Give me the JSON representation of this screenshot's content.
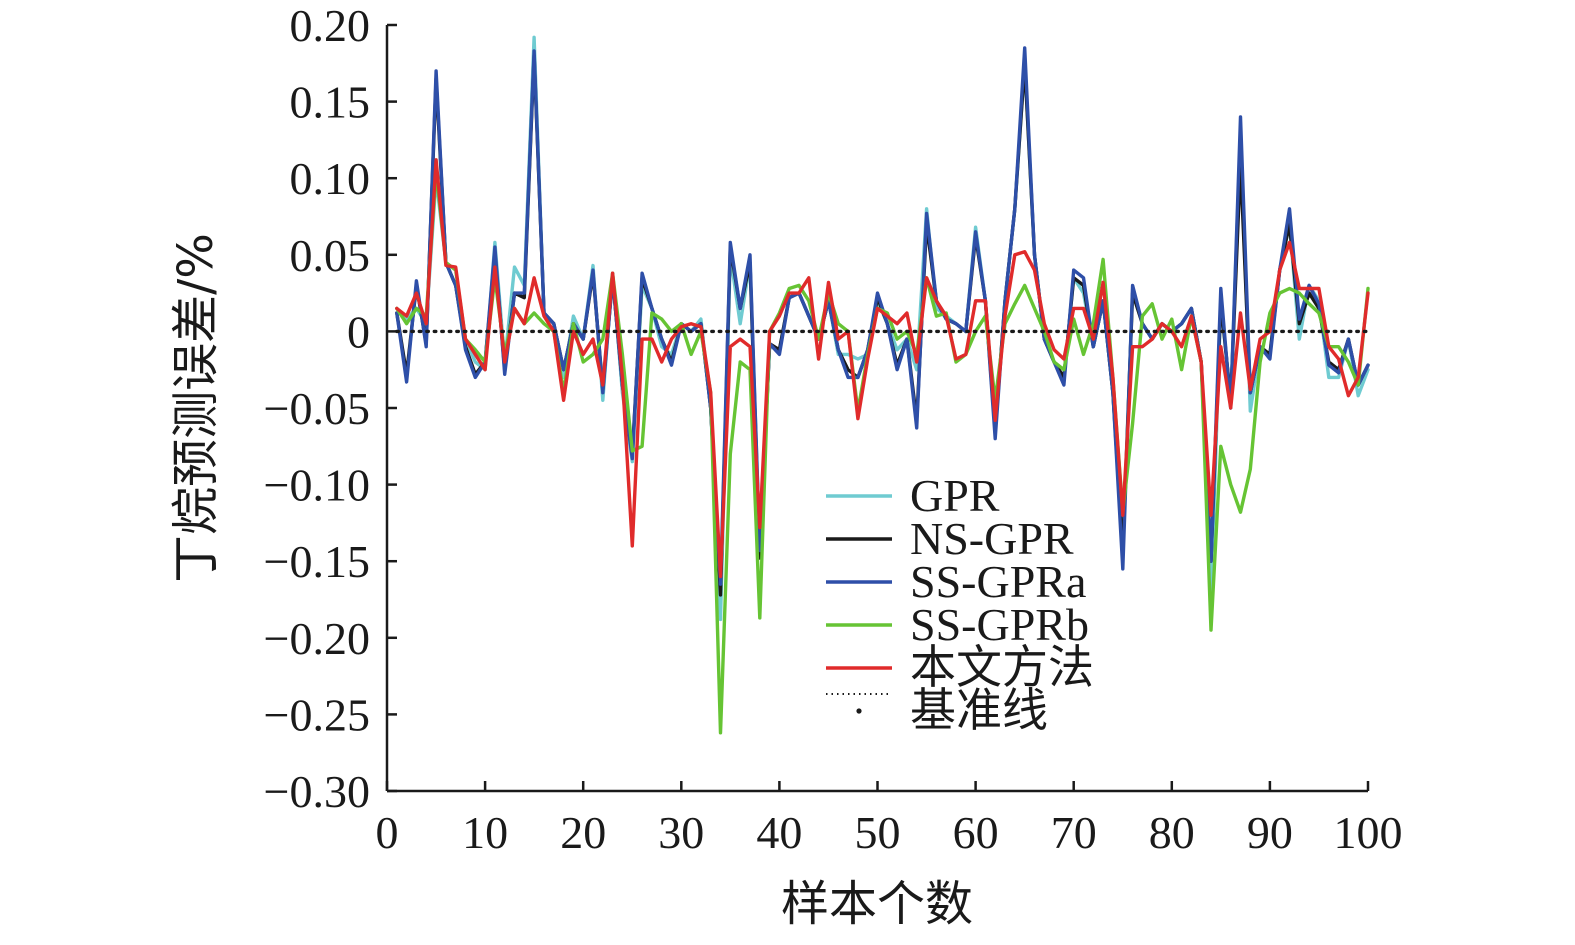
{
  "chart_data": {
    "type": "line",
    "xlabel": "样本个数",
    "ylabel": "丁烷预测误差/%",
    "xlim": [
      0,
      100
    ],
    "ylim": [
      -0.3,
      0.2
    ],
    "x_ticks": [
      0,
      10,
      20,
      30,
      40,
      50,
      60,
      70,
      80,
      90,
      100
    ],
    "x_tick_labels": [
      "0",
      "10",
      "20",
      "30",
      "40",
      "50",
      "60",
      "70",
      "80",
      "90",
      "100"
    ],
    "y_ticks": [
      0.2,
      0.15,
      0.1,
      0.05,
      0,
      -0.05,
      -0.1,
      -0.15,
      -0.2,
      -0.25,
      -0.3
    ],
    "y_tick_labels": [
      "0.20",
      "0.15",
      "0.10",
      "0.05",
      "0",
      "−0.05",
      "−0.10",
      "−0.15",
      "−0.20",
      "−0.25",
      "−0.30"
    ],
    "grid": false,
    "legend_position": "center-right",
    "legend": [
      {
        "label": "GPR",
        "color": "#6fcbd1",
        "style": "solid"
      },
      {
        "label": "NS-GPR",
        "color": "#1a1a1a",
        "style": "solid"
      },
      {
        "label": "SS-GPRa",
        "color": "#2e4fa8",
        "style": "solid"
      },
      {
        "label": "SS-GPRb",
        "color": "#66c434",
        "style": "solid"
      },
      {
        "label": "本文方法",
        "color": "#e02b2b",
        "style": "solid"
      },
      {
        "label": "基准线",
        "color": "#1a1a1a",
        "style": "dotted"
      }
    ],
    "x": [
      1,
      2,
      3,
      4,
      5,
      6,
      7,
      8,
      9,
      10,
      11,
      12,
      13,
      14,
      15,
      16,
      17,
      18,
      19,
      20,
      21,
      22,
      23,
      24,
      25,
      26,
      27,
      28,
      29,
      30,
      31,
      32,
      33,
      34,
      35,
      36,
      37,
      38,
      39,
      40,
      41,
      42,
      43,
      44,
      45,
      46,
      47,
      48,
      49,
      50,
      51,
      52,
      53,
      54,
      55,
      56,
      57,
      58,
      59,
      60,
      61,
      62,
      63,
      64,
      65,
      66,
      67,
      68,
      69,
      70,
      71,
      72,
      73,
      74,
      75,
      76,
      77,
      78,
      79,
      80,
      81,
      82,
      83,
      84,
      85,
      86,
      87,
      88,
      89,
      90,
      91,
      92,
      93,
      94,
      95,
      96,
      97,
      98,
      99,
      100
    ],
    "series": [
      {
        "name": "GPR",
        "color": "#6fcbd1",
        "values": [
          0.015,
          0.008,
          0.015,
          0.005,
          0.1,
          0.045,
          0.03,
          -0.005,
          -0.02,
          -0.025,
          0.058,
          -0.02,
          0.042,
          0.03,
          0.192,
          0.012,
          0.005,
          -0.03,
          0.01,
          -0.005,
          0.043,
          -0.045,
          0.038,
          -0.04,
          -0.085,
          0.03,
          0.015,
          -0.01,
          -0.015,
          0.005,
          0.0,
          0.008,
          -0.05,
          -0.188,
          0.05,
          0.005,
          0.045,
          -0.14,
          -0.01,
          -0.012,
          0.022,
          0.025,
          0.01,
          -0.005,
          0.02,
          -0.015,
          -0.015,
          -0.018,
          -0.015,
          0.02,
          0.005,
          -0.012,
          -0.005,
          -0.025,
          0.08,
          0.015,
          0.01,
          0.005,
          0.0,
          0.068,
          0.02,
          -0.065,
          0.02,
          0.08,
          0.175,
          0.05,
          -0.005,
          -0.02,
          -0.03,
          0.035,
          0.025,
          -0.01,
          0.02,
          -0.04,
          -0.14,
          0.025,
          0.005,
          -0.005,
          0.005,
          0.0,
          0.005,
          0.015,
          -0.02,
          -0.175,
          0.02,
          -0.045,
          0.13,
          -0.052,
          -0.01,
          -0.015,
          0.04,
          0.07,
          -0.005,
          0.03,
          0.02,
          -0.03,
          -0.03,
          -0.005,
          -0.042,
          -0.025
        ]
      },
      {
        "name": "NS-GPR",
        "color": "#1a1a1a",
        "values": [
          0.012,
          -0.028,
          0.03,
          -0.008,
          0.165,
          0.045,
          0.03,
          -0.01,
          -0.028,
          -0.02,
          0.05,
          -0.025,
          0.025,
          0.022,
          0.18,
          0.012,
          0.005,
          -0.025,
          0.005,
          -0.005,
          0.038,
          -0.038,
          0.035,
          -0.035,
          -0.08,
          0.035,
          0.015,
          -0.005,
          -0.02,
          0.005,
          0.0,
          0.005,
          -0.05,
          -0.172,
          0.055,
          0.015,
          0.045,
          -0.148,
          -0.008,
          -0.012,
          0.022,
          0.025,
          0.01,
          -0.005,
          0.02,
          -0.012,
          -0.025,
          -0.03,
          -0.012,
          0.022,
          0.005,
          -0.022,
          -0.005,
          -0.058,
          0.07,
          0.02,
          0.008,
          0.005,
          0.0,
          0.062,
          0.02,
          -0.065,
          0.02,
          0.08,
          0.175,
          0.05,
          -0.005,
          -0.02,
          -0.03,
          0.035,
          0.03,
          -0.01,
          0.02,
          -0.04,
          -0.145,
          0.025,
          0.005,
          -0.005,
          0.005,
          0.0,
          0.005,
          0.015,
          -0.02,
          -0.15,
          0.02,
          -0.045,
          0.11,
          -0.04,
          -0.01,
          -0.015,
          0.04,
          0.07,
          0.005,
          0.025,
          0.015,
          -0.02,
          -0.025,
          -0.005,
          -0.035,
          -0.022
        ]
      },
      {
        "name": "SS-GPRa",
        "color": "#2e4fa8",
        "values": [
          0.012,
          -0.033,
          0.033,
          -0.01,
          0.17,
          0.045,
          0.03,
          -0.012,
          -0.03,
          -0.02,
          0.055,
          -0.028,
          0.025,
          0.025,
          0.183,
          0.012,
          0.005,
          -0.025,
          0.005,
          -0.005,
          0.04,
          -0.04,
          0.035,
          -0.035,
          -0.083,
          0.038,
          0.015,
          -0.005,
          -0.022,
          0.005,
          0.0,
          0.005,
          -0.05,
          -0.165,
          0.058,
          0.015,
          0.05,
          -0.143,
          -0.008,
          -0.015,
          0.022,
          0.025,
          0.01,
          -0.005,
          0.02,
          -0.012,
          -0.03,
          -0.03,
          -0.012,
          0.025,
          0.005,
          -0.025,
          -0.005,
          -0.063,
          0.077,
          0.02,
          0.008,
          0.005,
          0.0,
          0.065,
          0.02,
          -0.07,
          0.02,
          0.08,
          0.185,
          0.05,
          -0.005,
          -0.02,
          -0.035,
          0.04,
          0.035,
          -0.01,
          0.02,
          -0.04,
          -0.155,
          0.03,
          0.005,
          -0.005,
          0.005,
          0.0,
          0.005,
          0.015,
          -0.02,
          -0.15,
          0.028,
          -0.05,
          0.14,
          -0.04,
          -0.01,
          -0.018,
          0.04,
          0.08,
          0.008,
          0.03,
          0.018,
          -0.022,
          -0.027,
          -0.005,
          -0.035,
          -0.022
        ]
      },
      {
        "name": "SS-GPRb",
        "color": "#66c434",
        "values": [
          0.015,
          0.005,
          0.015,
          0.01,
          0.105,
          0.045,
          0.04,
          -0.005,
          -0.012,
          -0.02,
          0.035,
          -0.015,
          0.015,
          0.005,
          0.012,
          0.005,
          0.0,
          -0.04,
          0.005,
          -0.02,
          -0.015,
          -0.005,
          0.038,
          -0.015,
          -0.078,
          -0.075,
          0.012,
          0.008,
          0.0,
          0.005,
          -0.015,
          0.0,
          -0.04,
          -0.262,
          -0.08,
          -0.02,
          -0.025,
          -0.187,
          0.0,
          0.012,
          0.028,
          0.03,
          0.02,
          -0.005,
          0.025,
          0.005,
          0.0,
          -0.052,
          -0.015,
          0.015,
          0.012,
          -0.005,
          0.0,
          -0.015,
          0.035,
          0.01,
          0.012,
          -0.02,
          -0.015,
          0.0,
          0.01,
          -0.045,
          0.005,
          0.018,
          0.03,
          0.015,
          0.0,
          -0.02,
          -0.025,
          0.008,
          -0.015,
          0.005,
          0.047,
          -0.03,
          -0.118,
          -0.06,
          0.01,
          0.018,
          -0.005,
          0.008,
          -0.025,
          0.01,
          -0.02,
          -0.195,
          -0.075,
          -0.1,
          -0.118,
          -0.09,
          -0.02,
          0.012,
          0.025,
          0.028,
          0.025,
          0.018,
          0.012,
          -0.01,
          -0.01,
          -0.02,
          -0.035,
          0.028
        ]
      },
      {
        "name": "本文方法",
        "color": "#e02b2b",
        "values": [
          0.015,
          0.01,
          0.025,
          0.005,
          0.112,
          0.043,
          0.042,
          -0.005,
          -0.015,
          -0.025,
          0.042,
          -0.02,
          0.015,
          0.005,
          0.035,
          0.01,
          0.0,
          -0.045,
          0.0,
          -0.015,
          -0.005,
          -0.035,
          0.038,
          -0.03,
          -0.14,
          -0.005,
          -0.005,
          -0.02,
          -0.005,
          0.003,
          0.005,
          0.003,
          -0.04,
          -0.16,
          -0.01,
          -0.005,
          -0.01,
          -0.128,
          0.0,
          0.01,
          0.025,
          0.025,
          0.035,
          -0.018,
          0.032,
          -0.005,
          0.0,
          -0.057,
          -0.018,
          0.015,
          0.01,
          0.005,
          0.012,
          -0.02,
          0.035,
          0.02,
          0.01,
          -0.018,
          -0.015,
          0.02,
          0.02,
          -0.058,
          0.01,
          0.05,
          0.052,
          0.04,
          0.005,
          -0.012,
          -0.018,
          0.015,
          0.015,
          -0.005,
          0.032,
          -0.03,
          -0.12,
          -0.01,
          -0.01,
          -0.005,
          0.005,
          0.0,
          -0.01,
          0.01,
          -0.02,
          -0.12,
          -0.01,
          -0.05,
          0.012,
          -0.038,
          -0.005,
          0.0,
          0.04,
          0.058,
          0.028,
          0.028,
          0.028,
          -0.01,
          -0.018,
          -0.042,
          -0.03,
          0.025
        ]
      },
      {
        "name": "基准线",
        "color": "#1a1a1a",
        "style": "dotted",
        "values": [
          0,
          0,
          0,
          0,
          0,
          0,
          0,
          0,
          0,
          0,
          0,
          0,
          0,
          0,
          0,
          0,
          0,
          0,
          0,
          0,
          0,
          0,
          0,
          0,
          0,
          0,
          0,
          0,
          0,
          0,
          0,
          0,
          0,
          0,
          0,
          0,
          0,
          0,
          0,
          0,
          0,
          0,
          0,
          0,
          0,
          0,
          0,
          0,
          0,
          0,
          0,
          0,
          0,
          0,
          0,
          0,
          0,
          0,
          0,
          0,
          0,
          0,
          0,
          0,
          0,
          0,
          0,
          0,
          0,
          0,
          0,
          0,
          0,
          0,
          0,
          0,
          0,
          0,
          0,
          0,
          0,
          0,
          0,
          0,
          0,
          0,
          0,
          0,
          0,
          0,
          0,
          0,
          0,
          0,
          0,
          0,
          0,
          0,
          0,
          0
        ]
      }
    ]
  }
}
